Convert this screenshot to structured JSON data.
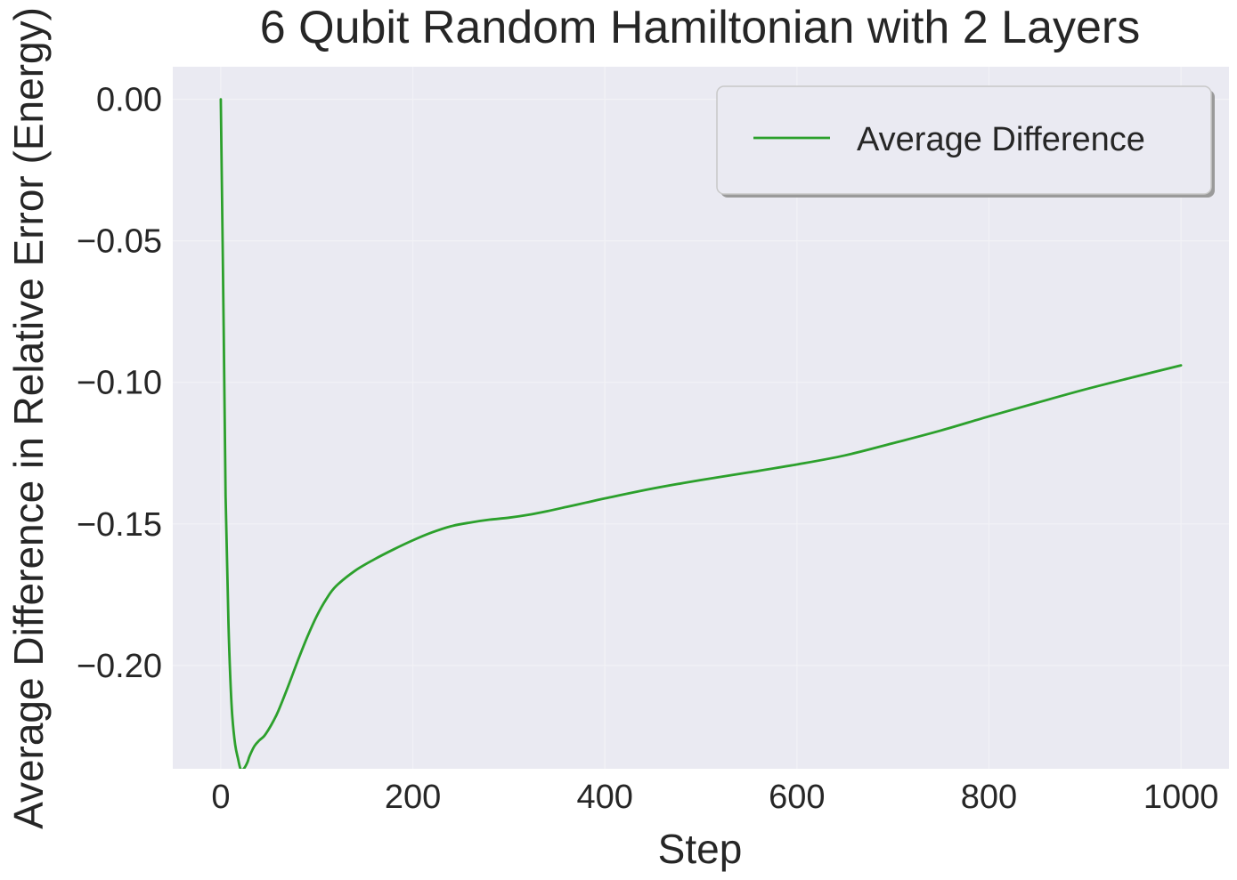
{
  "chart_data": {
    "type": "line",
    "title": "6 Qubit Random Hamiltonian with 2 Layers",
    "xlabel": "Step",
    "ylabel": "Average Difference in Relative Error (Energy)",
    "xlim": [
      -50,
      1050
    ],
    "ylim": [
      -0.2365,
      0.0115
    ],
    "xticks": [
      0,
      200,
      400,
      600,
      800,
      1000
    ],
    "xtick_labels": [
      "0",
      "200",
      "400",
      "600",
      "800",
      "1000"
    ],
    "yticks": [
      0.0,
      -0.05,
      -0.1,
      -0.15,
      -0.2
    ],
    "ytick_labels": [
      "0.00",
      "−0.05",
      "−0.10",
      "−0.15",
      "−0.20"
    ],
    "grid": true,
    "legend_position": "top-right",
    "background_color": "#eaeaf2",
    "series": [
      {
        "name": "Average Difference",
        "color": "#2ca02c",
        "x": [
          0,
          3,
          5,
          8,
          10,
          12,
          15,
          18,
          20,
          22,
          25,
          28,
          30,
          35,
          40,
          45,
          50,
          55,
          60,
          70,
          80,
          90,
          100,
          110,
          120,
          140,
          160,
          180,
          200,
          220,
          240,
          260,
          280,
          300,
          320,
          340,
          360,
          380,
          400,
          450,
          500,
          550,
          600,
          650,
          700,
          750,
          800,
          850,
          900,
          950,
          1000
        ],
        "values": [
          0.0,
          -0.08,
          -0.14,
          -0.185,
          -0.205,
          -0.218,
          -0.228,
          -0.233,
          -0.236,
          -0.237,
          -0.236,
          -0.234,
          -0.232,
          -0.2285,
          -0.2265,
          -0.225,
          -0.2225,
          -0.2195,
          -0.216,
          -0.2075,
          -0.1985,
          -0.19,
          -0.1825,
          -0.1765,
          -0.172,
          -0.1665,
          -0.1625,
          -0.159,
          -0.1558,
          -0.153,
          -0.1508,
          -0.1495,
          -0.1485,
          -0.1478,
          -0.1468,
          -0.1455,
          -0.144,
          -0.1425,
          -0.141,
          -0.1375,
          -0.1345,
          -0.1318,
          -0.129,
          -0.1258,
          -0.1215,
          -0.117,
          -0.112,
          -0.1072,
          -0.1025,
          -0.0982,
          -0.094
        ]
      }
    ]
  }
}
